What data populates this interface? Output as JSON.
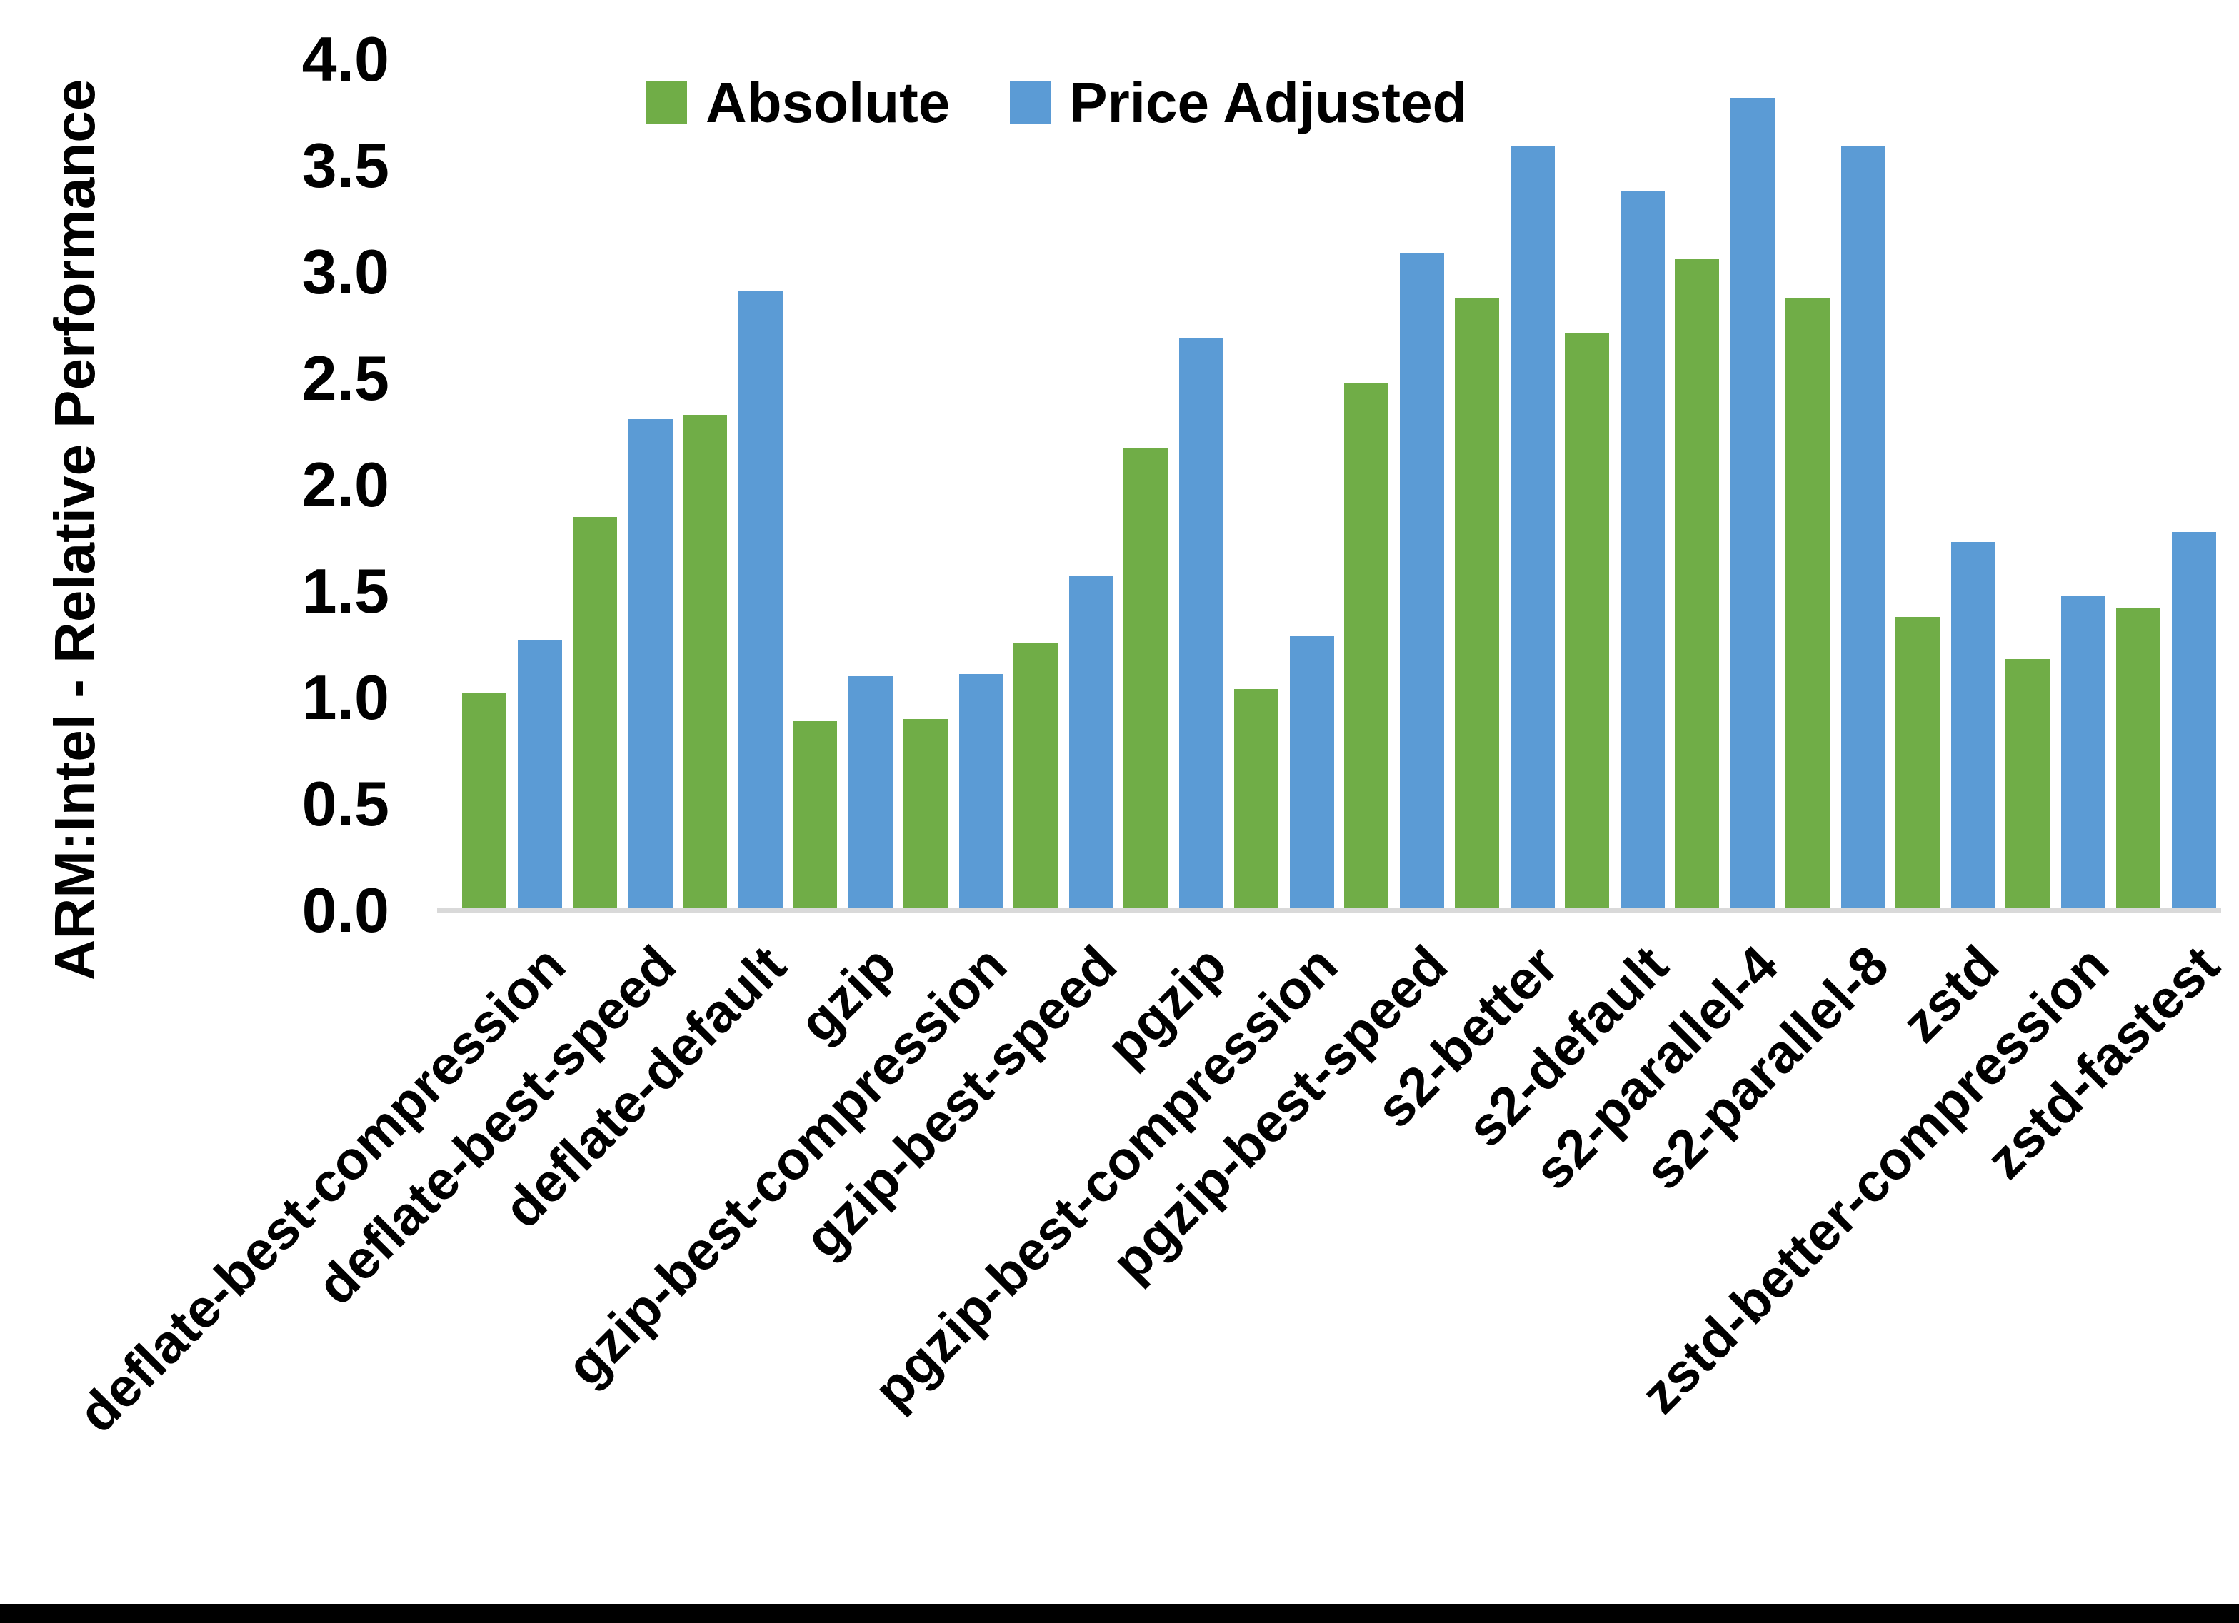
{
  "y_axis": {
    "title": "ARM:Intel - Relative Performance",
    "tick_labels": [
      "0.0",
      "0.5",
      "1.0",
      "1.5",
      "2.0",
      "2.5",
      "3.0",
      "3.5",
      "4.0"
    ],
    "min": 0.0,
    "max": 4.0,
    "step": 0.5
  },
  "legend": {
    "items": [
      {
        "label": "Absolute",
        "color": "#70AD47"
      },
      {
        "label": "Price Adjusted",
        "color": "#5B9BD5"
      }
    ],
    "position": "top-center"
  },
  "colors": {
    "absolute_green": "#70AD47",
    "price_adjusted_blue": "#5B9BD5",
    "axis_line": "#D9D9D9",
    "text": "#000000",
    "background": "#FFFFFF",
    "bottom_border": "#000000"
  },
  "chart_data": {
    "type": "bar",
    "title": "",
    "xlabel": "",
    "ylabel": "ARM:Intel - Relative Performance",
    "ylim": [
      0.0,
      4.0
    ],
    "ytick_step": 0.5,
    "grid": false,
    "legend_position": "top-center",
    "categories": [
      "deflate-best-compression",
      "deflate-best-speed",
      "deflate-default",
      "gzip",
      "gzip-best-compression",
      "gzip-best-speed",
      "pgzip",
      "pgzip-best-compression",
      "pgzip-best-speed",
      "s2-better",
      "s2-default",
      "s2-parallel-4",
      "s2-parallel-8",
      "zstd",
      "zstd-better-compression",
      "zstd-fastest"
    ],
    "series": [
      {
        "name": "Absolute",
        "color": "#70AD47",
        "values": [
          1.02,
          1.85,
          2.33,
          0.89,
          0.9,
          1.26,
          2.17,
          1.04,
          2.48,
          2.88,
          2.71,
          3.06,
          2.88,
          1.38,
          1.18,
          1.42
        ]
      },
      {
        "name": "Price Adjusted",
        "color": "#5B9BD5",
        "values": [
          1.27,
          2.31,
          2.91,
          1.1,
          1.11,
          1.57,
          2.69,
          1.29,
          3.09,
          3.59,
          3.38,
          3.82,
          3.59,
          1.73,
          1.48,
          1.78
        ]
      }
    ]
  }
}
